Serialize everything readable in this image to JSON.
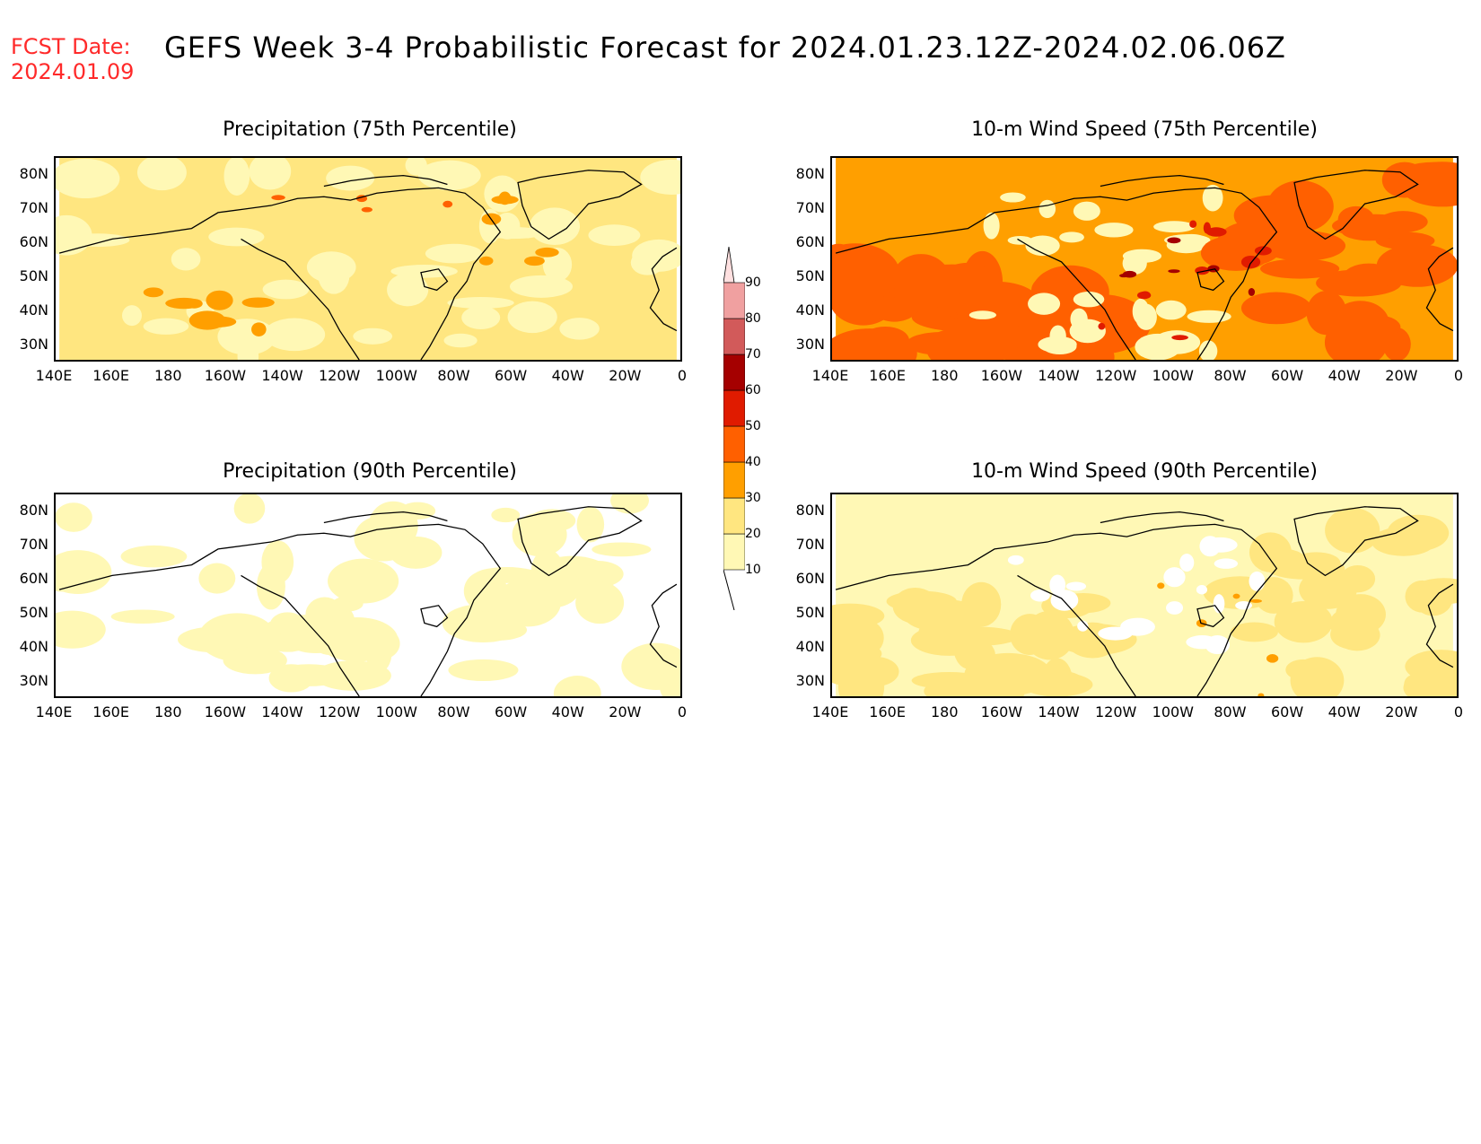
{
  "header": {
    "fcst_label": "FCST Date:",
    "fcst_date": "2024.01.09",
    "title": "GEFS Week 3-4 Probabilistic Forecast for 2024.01.23.12Z-2024.02.06.06Z"
  },
  "axes": {
    "lat_labels": [
      "80N",
      "70N",
      "60N",
      "50N",
      "40N",
      "30N"
    ],
    "lon_labels": [
      "140E",
      "160E",
      "180",
      "160W",
      "140W",
      "120W",
      "100W",
      "80W",
      "60W",
      "40W",
      "20W",
      "0"
    ]
  },
  "panels": [
    {
      "title": "Precipitation (75th Percentile)",
      "field": "precip75"
    },
    {
      "title": "10-m Wind Speed (75th Percentile)",
      "field": "wind75"
    },
    {
      "title": "Precipitation (90th Percentile)",
      "field": "precip90"
    },
    {
      "title": "10-m Wind Speed (90th Percentile)",
      "field": "wind90"
    }
  ],
  "colorbar": {
    "levels": [
      "10",
      "20",
      "30",
      "40",
      "50",
      "60",
      "70",
      "80",
      "90"
    ],
    "colors": [
      "#fff8b5",
      "#ffe680",
      "#ff9f00",
      "#ff6000",
      "#e01b00",
      "#a50000",
      "#d25a5a",
      "#f0a0a0",
      "#ffe0e0"
    ]
  }
}
